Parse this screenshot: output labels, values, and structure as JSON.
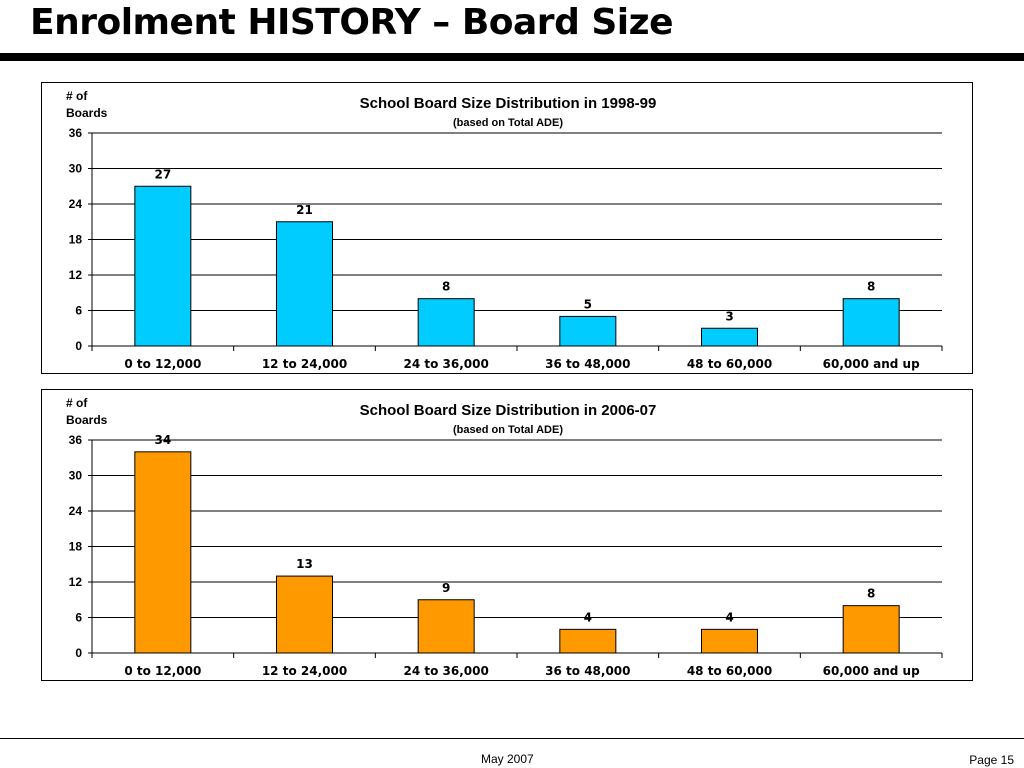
{
  "slide": {
    "title": "Enrolment HISTORY – Board Size",
    "footer_date": "May 2007",
    "footer_page": "Page 15"
  },
  "chart_data": [
    {
      "type": "bar",
      "title": "School Board Size Distribution in 1998-99",
      "subtitle": "(based on Total ADE)",
      "ylabel": [
        "# of",
        "Boards"
      ],
      "xlabel": "",
      "categories": [
        "0 to 12,000",
        "12 to 24,000",
        "24 to 36,000",
        "36 to 48,000",
        "48 to 60,000",
        "60,000 and up"
      ],
      "values": [
        27,
        21,
        8,
        5,
        3,
        8
      ],
      "ylim": [
        0,
        36
      ],
      "yticks": [
        0,
        6,
        12,
        18,
        24,
        30,
        36
      ],
      "bar_color": "#00CCFF",
      "grid": true,
      "legend": "none"
    },
    {
      "type": "bar",
      "title": "School Board Size Distribution in 2006-07",
      "subtitle": "(based on Total ADE)",
      "ylabel": [
        "# of",
        "Boards"
      ],
      "xlabel": "",
      "categories": [
        "0 to 12,000",
        "12 to 24,000",
        "24 to 36,000",
        "36 to 48,000",
        "48 to 60,000",
        "60,000 and up"
      ],
      "values": [
        34,
        13,
        9,
        4,
        4,
        8
      ],
      "ylim": [
        0,
        36
      ],
      "yticks": [
        0,
        6,
        12,
        18,
        24,
        30,
        36
      ],
      "bar_color": "#FF9900",
      "grid": true,
      "legend": "none"
    }
  ]
}
